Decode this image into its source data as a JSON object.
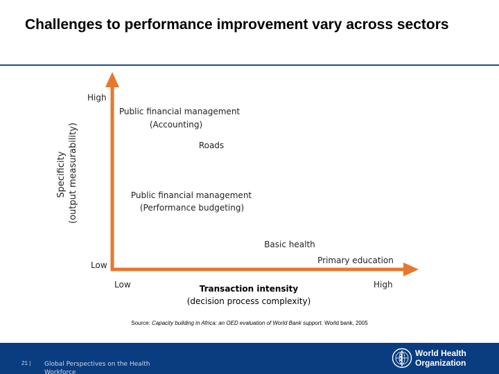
{
  "title": "Challenges to performance improvement vary across sectors",
  "diagram": {
    "y_axis": {
      "label_line1": "Specificity",
      "label_line2": "(output measurability)",
      "high": "High",
      "low": "Low"
    },
    "x_axis": {
      "label_line1": "Transaction intensity",
      "label_line2": "(decision process complexity)",
      "low": "Low",
      "high": "High"
    },
    "items": [
      {
        "line1": "Public financial management",
        "line2": "(Accounting)"
      },
      {
        "line1": "Roads"
      },
      {
        "line1": "Public financial management",
        "line2": "(Performance budgeting)"
      },
      {
        "line1": "Basic health"
      },
      {
        "line1": "Primary education"
      }
    ],
    "axis_color": "#e8772e"
  },
  "source": {
    "prefix": "Source: ",
    "citation": "Capacity building in Africa: an OED evaluation of World Bank support.",
    "suffix": " World bank, 2005"
  },
  "footer": {
    "page_number": "21 |",
    "text": "Global Perspectives on the Health Workforce",
    "org_line1": "World Health",
    "org_line2": "Organization",
    "logo_icon": "who-emblem-icon",
    "background": "#0a3d80"
  }
}
